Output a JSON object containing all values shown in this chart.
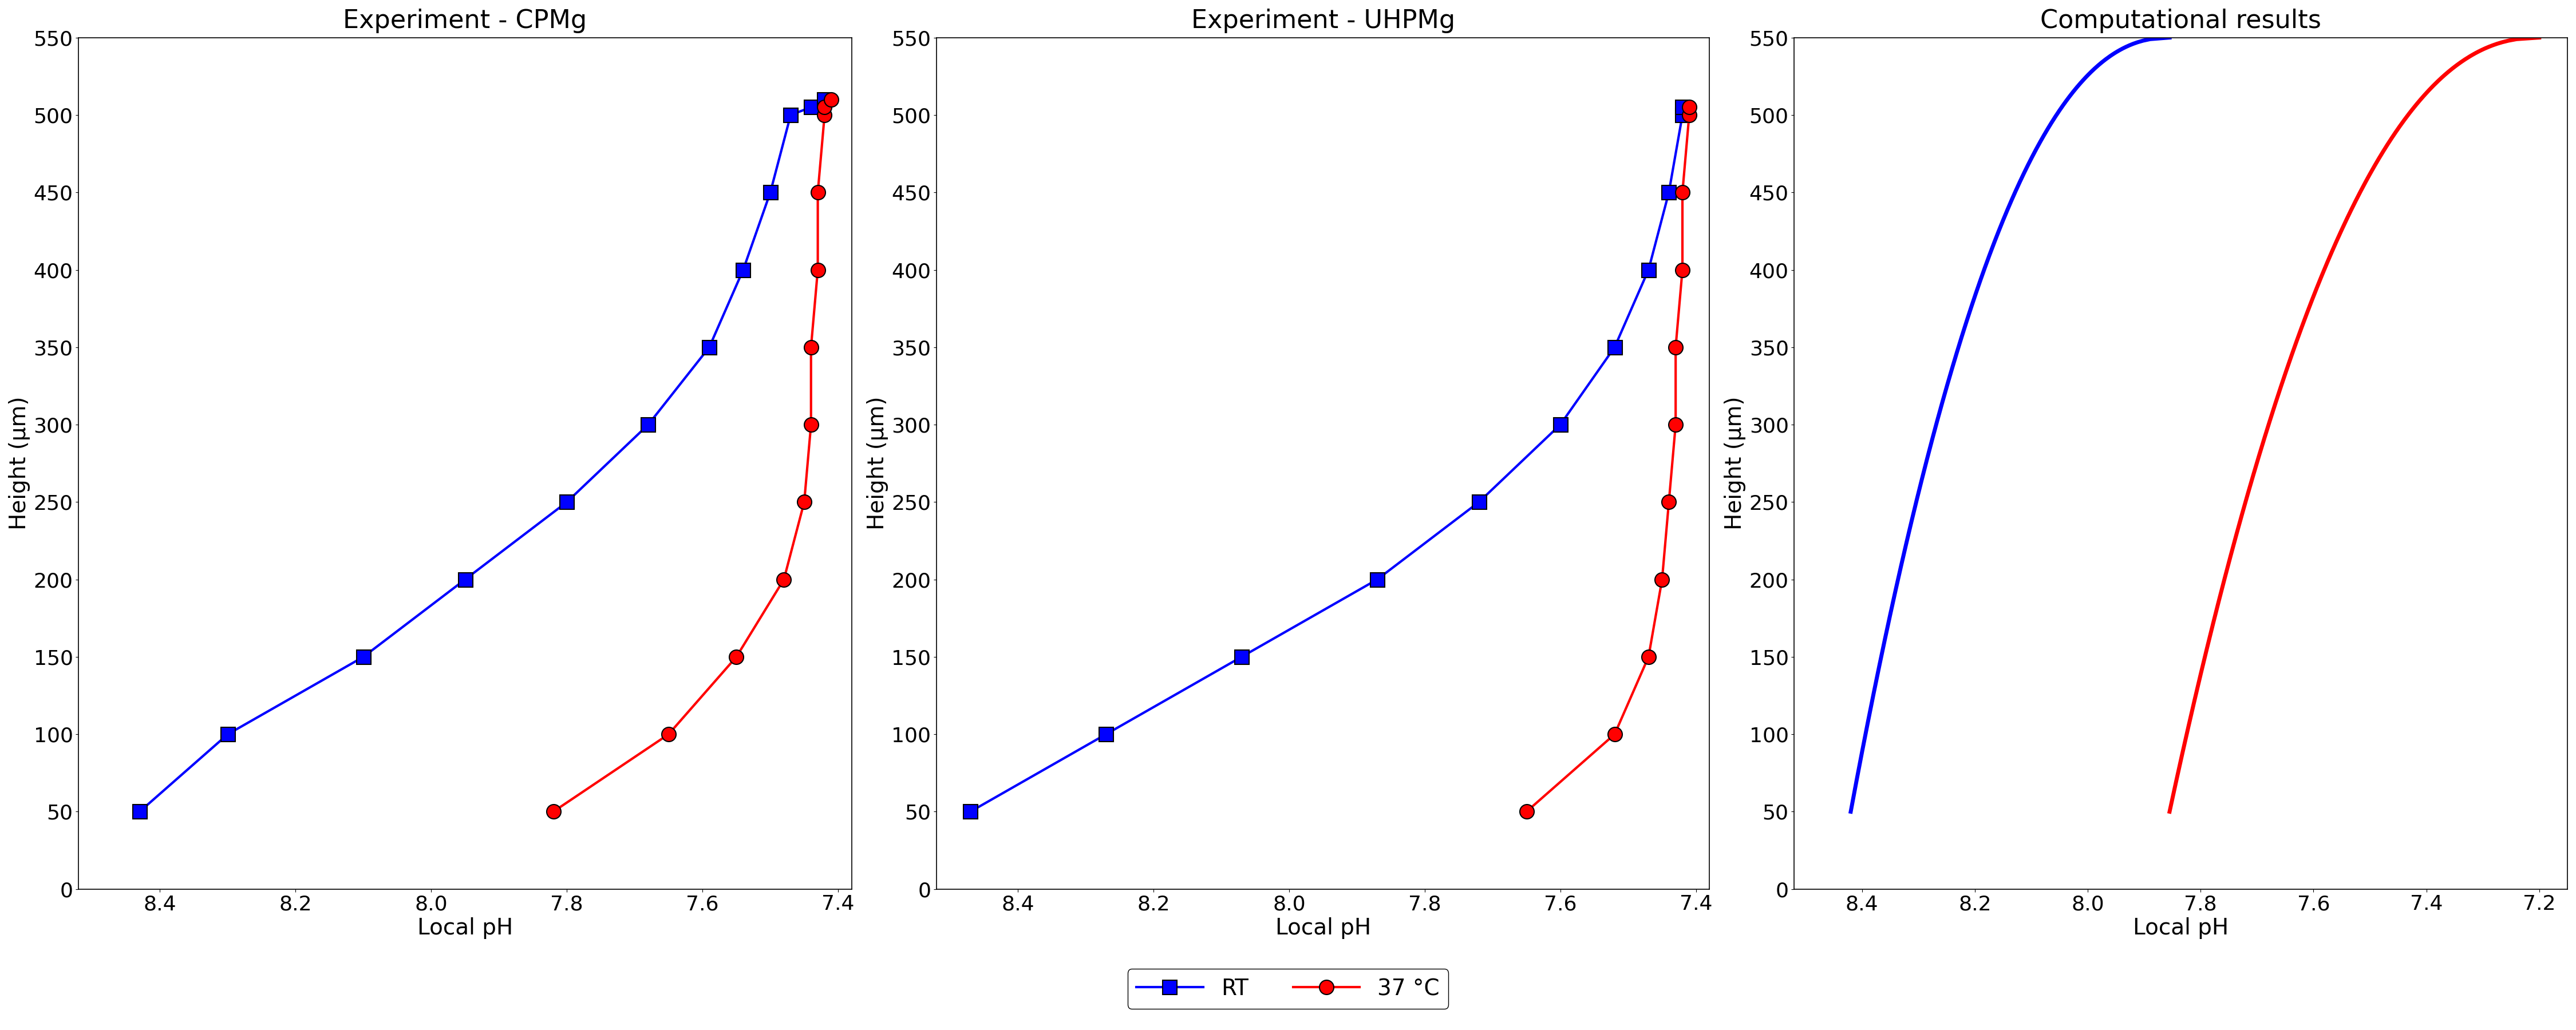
{
  "title1": "Experiment - CPMg",
  "title2": "Experiment - UHPMg",
  "title3": "Computational results",
  "xlabel": "Local pH",
  "ylabel": "Height (μm)",
  "ylim": [
    0,
    550
  ],
  "yticks": [
    0,
    50,
    100,
    150,
    200,
    250,
    300,
    350,
    400,
    450,
    500,
    550
  ],
  "cpmg_rt_pH": [
    8.43,
    8.3,
    8.1,
    7.95,
    7.8,
    7.68,
    7.59,
    7.54,
    7.5,
    7.47,
    7.44,
    7.42
  ],
  "cpmg_rt_h": [
    50,
    100,
    150,
    200,
    250,
    300,
    350,
    400,
    450,
    500,
    505,
    510
  ],
  "cpmg_37_pH": [
    7.82,
    7.65,
    7.55,
    7.48,
    7.45,
    7.44,
    7.44,
    7.43,
    7.43,
    7.42,
    7.42,
    7.41
  ],
  "cpmg_37_h": [
    50,
    100,
    150,
    200,
    250,
    300,
    350,
    400,
    450,
    500,
    505,
    510
  ],
  "uhpmg_rt_pH": [
    8.47,
    8.27,
    8.07,
    7.87,
    7.72,
    7.6,
    7.52,
    7.47,
    7.44,
    7.42,
    7.42
  ],
  "uhpmg_rt_h": [
    50,
    100,
    150,
    200,
    250,
    300,
    350,
    400,
    450,
    500,
    505
  ],
  "uhpmg_37_pH": [
    7.65,
    7.52,
    7.47,
    7.45,
    7.44,
    7.43,
    7.43,
    7.42,
    7.42,
    7.41,
    7.41
  ],
  "uhpmg_37_h": [
    50,
    100,
    150,
    200,
    250,
    300,
    350,
    400,
    450,
    500,
    505
  ],
  "xlim1": [
    7.38,
    8.52
  ],
  "xticks1": [
    8.4,
    8.2,
    8.0,
    7.8,
    7.6,
    7.4
  ],
  "xlim2": [
    7.38,
    8.52
  ],
  "xticks2": [
    8.4,
    8.2,
    8.0,
    7.8,
    7.6,
    7.4
  ],
  "xlim3": [
    7.15,
    8.52
  ],
  "xticks3": [
    8.4,
    8.2,
    8.0,
    7.8,
    7.6,
    7.4,
    7.2
  ],
  "color_blue": "#0000ff",
  "color_red": "#ff0000",
  "marker_blue": "s",
  "marker_red": "o",
  "markersize": 18,
  "linewidth": 3.0,
  "comp_linewidth": 5.0,
  "legend_rt": "RT",
  "legend_37": "37 °C",
  "title_fontsize": 32,
  "label_fontsize": 28,
  "tick_fontsize": 26,
  "legend_fontsize": 28
}
